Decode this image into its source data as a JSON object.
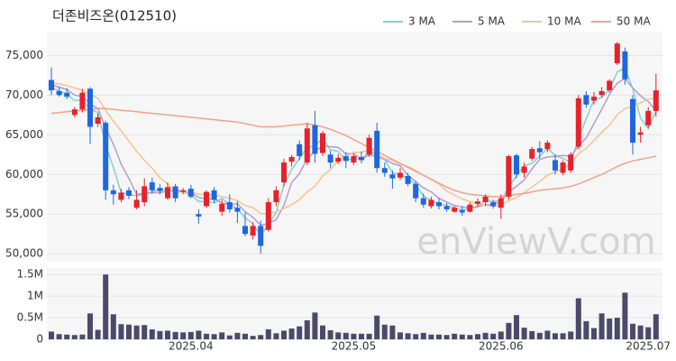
{
  "chart_data": [
    {
      "type": "candlestick",
      "title": "더존비즈온(012510)",
      "watermark": "enViewV.com",
      "categories": [
        null,
        null,
        null,
        null,
        null,
        null,
        null,
        null,
        null,
        null,
        null,
        null,
        null,
        null,
        null,
        null,
        null,
        null,
        "2025.04",
        null,
        null,
        null,
        null,
        null,
        null,
        null,
        null,
        null,
        null,
        null,
        null,
        null,
        null,
        null,
        null,
        null,
        null,
        null,
        null,
        "2025.05",
        null,
        null,
        null,
        null,
        null,
        null,
        null,
        null,
        null,
        null,
        null,
        null,
        null,
        null,
        null,
        null,
        null,
        null,
        "2025.06",
        null,
        null,
        null,
        null,
        null,
        null,
        null,
        null,
        null,
        null,
        null,
        null,
        null,
        null,
        null,
        null,
        null,
        null,
        "2025.07",
        null
      ],
      "open": [
        71900,
        70500,
        70300,
        67500,
        68200,
        70800,
        66400,
        66500,
        58000,
        56800,
        58000,
        55800,
        56500,
        59000,
        58300,
        57000,
        58500,
        57800,
        58200,
        55000,
        56000,
        58000,
        55300,
        56500,
        55800,
        53500,
        52300,
        53500,
        53000,
        56500,
        59000,
        61600,
        63800,
        61500,
        66200,
        62700,
        62500,
        61600,
        62300,
        61500,
        62200,
        62500,
        65500,
        60800,
        60000,
        59600,
        59800,
        58800,
        57000,
        56000,
        56500,
        56000,
        55300,
        55500,
        55300,
        56300,
        56500,
        56500,
        55800,
        57200,
        62400,
        60200,
        62000,
        63300,
        63200,
        61800,
        60200,
        60500,
        63500,
        70000,
        69300,
        70000,
        70600,
        74000,
        75500,
        69500,
        65000,
        66200,
        68000
      ],
      "high": [
        73500,
        71000,
        70900,
        68500,
        70800,
        71000,
        67700,
        66800,
        58700,
        58200,
        58400,
        58000,
        59500,
        59600,
        58800,
        59000,
        58800,
        58300,
        58700,
        55600,
        58000,
        58400,
        56800,
        57500,
        56600,
        55200,
        54000,
        54200,
        57000,
        58500,
        62000,
        62500,
        64300,
        66500,
        68000,
        65500,
        63000,
        62600,
        62800,
        62600,
        62900,
        65000,
        66500,
        61500,
        60500,
        60800,
        60200,
        59200,
        57600,
        57200,
        57000,
        56400,
        56000,
        56000,
        56500,
        57000,
        57500,
        56800,
        57500,
        62500,
        62600,
        61500,
        63500,
        64200,
        64300,
        62500,
        61800,
        62800,
        70000,
        70500,
        70400,
        71000,
        72000,
        76700,
        76000,
        70000,
        66000,
        68500,
        72700
      ],
      "low": [
        70000,
        69800,
        69500,
        67200,
        67800,
        63800,
        66000,
        56800,
        56200,
        56500,
        56900,
        55600,
        56000,
        57600,
        57500,
        56800,
        56500,
        57500,
        57000,
        53800,
        55800,
        56400,
        54800,
        55200,
        53900,
        52200,
        51800,
        50000,
        52800,
        56000,
        58500,
        61000,
        61800,
        61200,
        61500,
        62300,
        60800,
        61300,
        60800,
        61200,
        61400,
        62200,
        60200,
        59700,
        58200,
        59300,
        58500,
        56500,
        55800,
        55700,
        55600,
        55300,
        55200,
        54800,
        55200,
        56000,
        56000,
        55700,
        54400,
        56800,
        59500,
        59600,
        61700,
        62000,
        62800,
        60000,
        59900,
        60200,
        63200,
        68400,
        68800,
        69700,
        70300,
        73800,
        71300,
        62500,
        64000,
        65800,
        67300
      ],
      "close": [
        70600,
        70000,
        69800,
        68200,
        70300,
        66000,
        67200,
        58000,
        57500,
        57700,
        57300,
        56800,
        58500,
        58000,
        57900,
        58400,
        57000,
        58000,
        57200,
        54700,
        57800,
        56800,
        56300,
        55600,
        55300,
        52500,
        53500,
        51000,
        56500,
        58000,
        61500,
        62200,
        62300,
        65800,
        62600,
        65200,
        61500,
        62100,
        61700,
        62300,
        61800,
        64600,
        60800,
        60200,
        59500,
        60200,
        58800,
        57000,
        56200,
        56800,
        56000,
        55600,
        55800,
        55200,
        56200,
        56600,
        57200,
        56000,
        57000,
        62300,
        60000,
        61000,
        63200,
        62800,
        64000,
        60500,
        61500,
        62500,
        69600,
        68800,
        69800,
        70500,
        71800,
        76500,
        72000,
        64000,
        65300,
        68000,
        70600
      ],
      "up_color": "#e8212a",
      "down_color": "#1f67e0",
      "series": [
        {
          "name": "3 MA",
          "color": "#7fd3cf",
          "values": [
            71000,
            70500,
            70100,
            69300,
            69400,
            68200,
            67800,
            63700,
            60900,
            57700,
            57500,
            57300,
            57500,
            57800,
            58100,
            58100,
            57800,
            57800,
            57400,
            56600,
            56600,
            56400,
            57000,
            56200,
            55700,
            54500,
            53800,
            52300,
            53700,
            55200,
            58700,
            60600,
            62000,
            63400,
            63600,
            64500,
            63100,
            62900,
            61800,
            62000,
            61900,
            62900,
            62400,
            61900,
            60200,
            60000,
            59500,
            58700,
            57300,
            56700,
            56300,
            56100,
            55800,
            55500,
            55700,
            56000,
            56700,
            56600,
            56700,
            58400,
            59800,
            61100,
            61400,
            62300,
            63300,
            62400,
            62000,
            61500,
            64500,
            67000,
            69400,
            69700,
            70700,
            72900,
            73400,
            70800,
            67100,
            65800,
            68000
          ]
        },
        {
          "name": "5 MA",
          "color": "#b49ccf",
          "values": [
            71300,
            71000,
            70700,
            70000,
            69800,
            68900,
            68300,
            65900,
            63800,
            61300,
            59500,
            57500,
            57600,
            57700,
            57700,
            57900,
            58000,
            57900,
            57700,
            57100,
            56900,
            56900,
            56400,
            56200,
            56300,
            55300,
            54600,
            53600,
            53800,
            54300,
            56100,
            59000,
            60100,
            62000,
            62900,
            63600,
            63500,
            63400,
            62600,
            62600,
            61900,
            62500,
            62200,
            61900,
            61400,
            61100,
            59900,
            59100,
            58300,
            57800,
            57000,
            56500,
            56100,
            55900,
            55800,
            55900,
            56200,
            56200,
            56600,
            57800,
            58500,
            59300,
            60700,
            61900,
            62200,
            62300,
            62400,
            62300,
            63600,
            64600,
            66400,
            68200,
            70100,
            71500,
            72100,
            70900,
            69900,
            69200,
            68000
          ]
        },
        {
          "name": "10 MA",
          "color": "#f5c48f",
          "values": [
            71500,
            71400,
            71200,
            70900,
            70600,
            70100,
            69600,
            68100,
            66700,
            65500,
            64200,
            62900,
            61800,
            60800,
            59600,
            58800,
            57800,
            57800,
            57800,
            57500,
            57500,
            57400,
            57200,
            57000,
            56700,
            56100,
            55800,
            55100,
            55000,
            55300,
            55700,
            56200,
            56800,
            57800,
            58500,
            59800,
            60600,
            61700,
            62200,
            62800,
            62800,
            63100,
            62500,
            62000,
            61800,
            61300,
            61000,
            60500,
            59900,
            59400,
            58800,
            57900,
            57400,
            56900,
            56600,
            56300,
            56100,
            56000,
            56100,
            56700,
            57100,
            57700,
            58400,
            59100,
            59900,
            60300,
            60700,
            61400,
            62600,
            63300,
            64300,
            65300,
            66200,
            67500,
            68300,
            68600,
            69000,
            69500,
            69600
          ]
        },
        {
          "name": "50 MA",
          "color": "#f4a08a",
          "values": [
            67700,
            67800,
            67900,
            68000,
            68100,
            68200,
            68300,
            68300,
            68200,
            68100,
            68000,
            67900,
            67800,
            67700,
            67600,
            67500,
            67400,
            67300,
            67200,
            67100,
            67000,
            66900,
            66800,
            66700,
            66600,
            66400,
            66200,
            66000,
            66000,
            66000,
            66100,
            66200,
            66300,
            66400,
            66200,
            66000,
            65700,
            65300,
            64900,
            64400,
            63900,
            63400,
            62900,
            62400,
            61900,
            61400,
            60900,
            60400,
            59900,
            59400,
            58900,
            58400,
            58000,
            57700,
            57500,
            57400,
            57300,
            57200,
            57200,
            57300,
            57500,
            57600,
            57800,
            58000,
            58100,
            58200,
            58300,
            58500,
            58800,
            59200,
            59600,
            60000,
            60500,
            61000,
            61400,
            61700,
            61900,
            62100,
            62300
          ]
        }
      ],
      "ylim": [
        49000,
        78000
      ],
      "yticks": [
        {
          "value": 50000,
          "label": "50,000"
        },
        {
          "value": 55000,
          "label": "55,000"
        },
        {
          "value": 60000,
          "label": "60,000"
        },
        {
          "value": 65000,
          "label": "65,000"
        },
        {
          "value": 70000,
          "label": "70,000"
        },
        {
          "value": 75000,
          "label": "75,000"
        }
      ],
      "grid": true
    },
    {
      "type": "bar",
      "color": "#4a4a6a",
      "values": [
        180000,
        120000,
        110000,
        100000,
        110000,
        600000,
        220000,
        1500000,
        580000,
        350000,
        340000,
        320000,
        330000,
        230000,
        190000,
        200000,
        170000,
        160000,
        170000,
        200000,
        130000,
        120000,
        160000,
        90000,
        150000,
        130000,
        80000,
        100000,
        230000,
        140000,
        200000,
        250000,
        300000,
        440000,
        620000,
        320000,
        210000,
        160000,
        150000,
        130000,
        130000,
        130000,
        550000,
        340000,
        320000,
        160000,
        140000,
        120000,
        150000,
        110000,
        110000,
        100000,
        130000,
        110000,
        100000,
        120000,
        150000,
        130000,
        180000,
        380000,
        560000,
        270000,
        190000,
        150000,
        200000,
        140000,
        140000,
        180000,
        950000,
        420000,
        260000,
        600000,
        480000,
        500000,
        1080000,
        360000,
        320000,
        280000,
        580000
      ],
      "ylim": [
        0,
        1650000
      ],
      "yticks": [
        0,
        {
          "value": 500000,
          "label": "0.5M"
        },
        {
          "value": 1000000,
          "label": "1M"
        },
        {
          "value": 1500000,
          "label": "1.5M"
        }
      ],
      "grid": true
    }
  ]
}
